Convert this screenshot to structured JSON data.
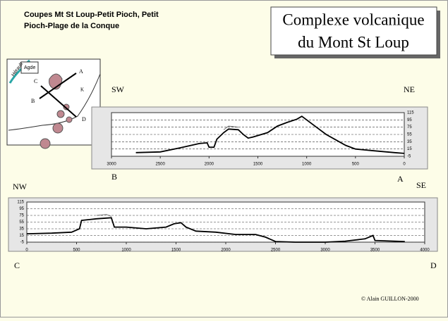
{
  "header": {
    "caption": [
      "Coupes Mt St Loup-Petit Pioch, Petit",
      "Pioch-Plage de la Conque"
    ],
    "title": [
      "Complexe volcanique",
      "du Mont St Loup"
    ]
  },
  "map": {
    "labels": [
      "Agde",
      "Hérault",
      "A",
      "B",
      "C",
      "D",
      "K"
    ]
  },
  "profiles": [
    {
      "left": "SW",
      "right": "NE",
      "start": "B",
      "end": "A"
    },
    {
      "left": "NW",
      "right": "SE",
      "start": "C",
      "end": "D"
    }
  ],
  "credit": "© Alain GUILLON-2000",
  "chart_data": [
    {
      "type": "line",
      "xlim": [
        3000,
        0
      ],
      "xticks": [
        3000,
        2500,
        2000,
        1500,
        1000,
        500,
        0
      ],
      "ylim": [
        -5,
        115
      ],
      "yticks": [
        -5,
        15,
        35,
        55,
        75,
        95,
        115
      ],
      "grid": true,
      "x": [
        2750,
        2500,
        2300,
        2100,
        2020,
        2000,
        1950,
        1920,
        1850,
        1800,
        1700,
        1650,
        1600,
        1550,
        1400,
        1300,
        1200,
        1100,
        1050,
        1000,
        900,
        800,
        700,
        600,
        500,
        300,
        100,
        0
      ],
      "series": [
        {
          "color": "#000000",
          "values": [
            5,
            7,
            18,
            30,
            32,
            20,
            20,
            42,
            60,
            70,
            68,
            55,
            45,
            48,
            60,
            78,
            88,
            97,
            105,
            95,
            75,
            55,
            40,
            25,
            15,
            10,
            5,
            3
          ]
        },
        {
          "color": "#555555",
          "values": [
            null,
            null,
            null,
            null,
            null,
            null,
            null,
            null,
            68,
            78,
            75,
            null,
            null,
            null,
            null,
            null,
            null,
            null,
            null,
            null,
            null,
            null,
            null,
            null,
            null,
            null,
            null,
            null
          ]
        }
      ]
    },
    {
      "type": "line",
      "xlim": [
        0,
        4000
      ],
      "xticks": [
        0,
        500,
        1000,
        1500,
        2000,
        2500,
        3000,
        3500,
        4000
      ],
      "ylim": [
        -5,
        115
      ],
      "yticks": [
        -5,
        15,
        35,
        55,
        75,
        95,
        115
      ],
      "grid": true,
      "x": [
        0,
        250,
        450,
        530,
        550,
        700,
        800,
        850,
        880,
        1000,
        1200,
        1400,
        1480,
        1550,
        1600,
        1700,
        1900,
        2100,
        2300,
        2400,
        2500,
        2700,
        3000,
        3200,
        3400,
        3480,
        3500,
        3800
      ],
      "series": [
        {
          "color": "#000000",
          "values": [
            20,
            22,
            25,
            35,
            60,
            65,
            67,
            68,
            40,
            40,
            35,
            40,
            50,
            53,
            40,
            28,
            25,
            18,
            18,
            10,
            -3,
            -5,
            -5,
            -2,
            5,
            15,
            0,
            -3
          ]
        },
        {
          "color": "#555555",
          "values": [
            null,
            null,
            null,
            null,
            null,
            75,
            78,
            72,
            null,
            null,
            null,
            null,
            null,
            null,
            null,
            null,
            null,
            null,
            null,
            null,
            null,
            null,
            null,
            null,
            null,
            null,
            null,
            null
          ]
        }
      ]
    }
  ]
}
